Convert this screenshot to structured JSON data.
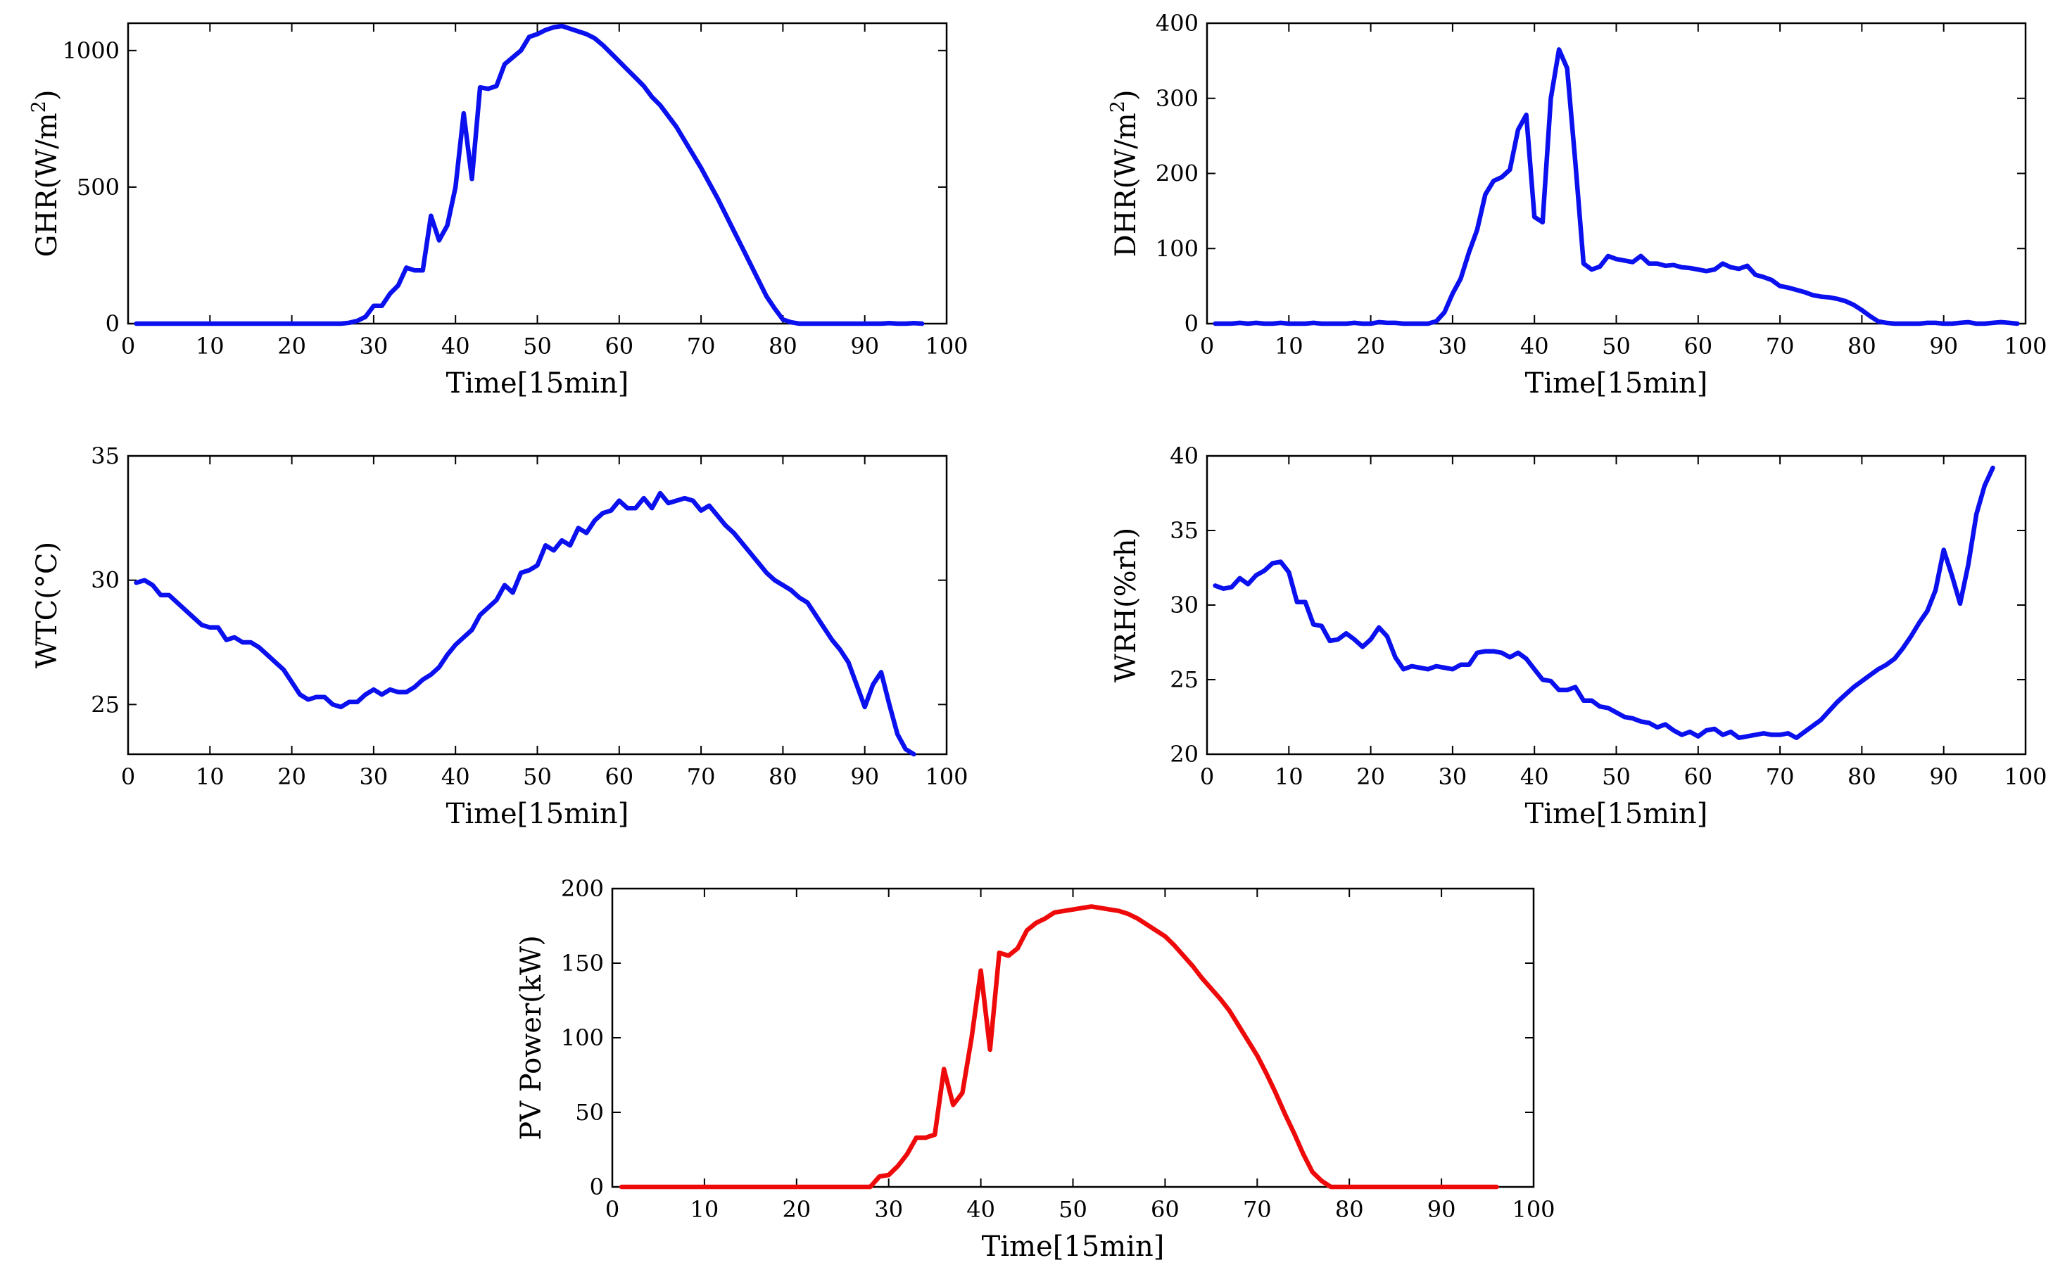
{
  "colors": {
    "blue_series": "#0a10ee",
    "red_series": "#ee0a0a"
  },
  "chart_data": [
    {
      "id": "ghr",
      "type": "line",
      "xlabel": "Time[15min]",
      "ylabel": "GHR(W/m",
      "ylabel_sup": "2",
      "ylabel_end": ")",
      "xlim": [
        0,
        100
      ],
      "ylim": [
        0,
        1100
      ],
      "xticks": [
        0,
        10,
        20,
        30,
        40,
        50,
        60,
        70,
        80,
        90,
        100
      ],
      "yticks": [
        0,
        500,
        1000
      ],
      "color": "#0a10ee",
      "series": [
        {
          "name": "GHR",
          "values": [
            0,
            0,
            0,
            0,
            0,
            0,
            0,
            0,
            0,
            0,
            0,
            0,
            0,
            0,
            0,
            0,
            0,
            0,
            0,
            0,
            0,
            0,
            0,
            0,
            0,
            0,
            3,
            10,
            25,
            65,
            65,
            110,
            140,
            205,
            195,
            195,
            395,
            305,
            360,
            500,
            770,
            530,
            865,
            860,
            870,
            950,
            975,
            1000,
            1050,
            1060,
            1075,
            1085,
            1090,
            1080,
            1070,
            1060,
            1045,
            1020,
            990,
            960,
            930,
            900,
            870,
            830,
            800,
            760,
            720,
            670,
            620,
            570,
            515,
            460,
            400,
            340,
            280,
            220,
            160,
            100,
            55,
            15,
            5,
            0,
            0,
            0,
            0,
            0,
            0,
            0,
            0,
            0,
            0,
            0,
            2,
            0,
            0,
            2,
            0
          ]
        }
      ]
    },
    {
      "id": "dhr",
      "type": "line",
      "xlabel": "Time[15min]",
      "ylabel": "DHR(W/m",
      "ylabel_sup": "2",
      "ylabel_end": ")",
      "xlim": [
        0,
        100
      ],
      "ylim": [
        0,
        400
      ],
      "xticks": [
        0,
        10,
        20,
        30,
        40,
        50,
        60,
        70,
        80,
        90,
        100
      ],
      "yticks": [
        0,
        100,
        200,
        300,
        400
      ],
      "color": "#0a10ee",
      "series": [
        {
          "name": "DHR",
          "values": [
            0,
            0,
            0,
            1,
            0,
            1,
            0,
            0,
            1,
            0,
            0,
            0,
            1,
            0,
            0,
            0,
            0,
            1,
            0,
            0,
            2,
            1,
            1,
            0,
            0,
            0,
            0,
            3,
            15,
            40,
            60,
            95,
            125,
            172,
            190,
            195,
            205,
            258,
            278,
            142,
            135,
            300,
            365,
            340,
            215,
            80,
            72,
            76,
            90,
            86,
            84,
            82,
            90,
            80,
            80,
            77,
            78,
            75,
            74,
            72,
            70,
            72,
            80,
            75,
            73,
            77,
            65,
            62,
            58,
            50,
            48,
            45,
            42,
            38,
            36,
            35,
            33,
            30,
            25,
            18,
            10,
            3,
            1,
            0,
            0,
            0,
            0,
            1,
            1,
            0,
            0,
            1,
            2,
            0,
            0,
            1,
            2,
            1,
            0
          ]
        }
      ]
    },
    {
      "id": "wtc",
      "type": "line",
      "xlabel": "Time[15min]",
      "ylabel": "WTC(°C)",
      "xlim": [
        0,
        100
      ],
      "ylim": [
        23,
        35
      ],
      "xticks": [
        0,
        10,
        20,
        30,
        40,
        50,
        60,
        70,
        80,
        90,
        100
      ],
      "yticks": [
        25,
        30,
        35
      ],
      "color": "#0a10ee",
      "series": [
        {
          "name": "WTC",
          "values": [
            29.9,
            30.0,
            29.8,
            29.4,
            29.4,
            29.1,
            28.8,
            28.5,
            28.2,
            28.1,
            28.1,
            27.6,
            27.7,
            27.5,
            27.5,
            27.3,
            27.0,
            26.7,
            26.4,
            25.9,
            25.4,
            25.2,
            25.3,
            25.3,
            25.0,
            24.9,
            25.1,
            25.1,
            25.4,
            25.6,
            25.4,
            25.6,
            25.5,
            25.5,
            25.7,
            26.0,
            26.2,
            26.5,
            27.0,
            27.4,
            27.7,
            28.0,
            28.6,
            28.9,
            29.2,
            29.8,
            29.5,
            30.3,
            30.4,
            30.6,
            31.4,
            31.2,
            31.6,
            31.4,
            32.1,
            31.9,
            32.4,
            32.7,
            32.8,
            33.2,
            32.9,
            32.9,
            33.3,
            32.9,
            33.5,
            33.1,
            33.2,
            33.3,
            33.2,
            32.8,
            33.0,
            32.6,
            32.2,
            31.9,
            31.5,
            31.1,
            30.7,
            30.3,
            30.0,
            29.8,
            29.6,
            29.3,
            29.1,
            28.6,
            28.1,
            27.6,
            27.2,
            26.7,
            25.8,
            24.9,
            25.8,
            26.3,
            25.0,
            23.8,
            23.2,
            23.0
          ]
        }
      ]
    },
    {
      "id": "wrh",
      "type": "line",
      "xlabel": "Time[15min]",
      "ylabel": "WRH(%rh)",
      "xlim": [
        0,
        100
      ],
      "ylim": [
        20,
        40
      ],
      "xticks": [
        0,
        10,
        20,
        30,
        40,
        50,
        60,
        70,
        80,
        90,
        100
      ],
      "yticks": [
        20,
        25,
        30,
        35,
        40
      ],
      "color": "#0a10ee",
      "series": [
        {
          "name": "WRH",
          "values": [
            31.3,
            31.1,
            31.2,
            31.8,
            31.4,
            32.0,
            32.3,
            32.8,
            32.9,
            32.2,
            30.2,
            30.2,
            28.7,
            28.6,
            27.6,
            27.7,
            28.1,
            27.7,
            27.2,
            27.7,
            28.5,
            27.9,
            26.5,
            25.7,
            25.9,
            25.8,
            25.7,
            25.9,
            25.8,
            25.7,
            26.0,
            26.0,
            26.8,
            26.9,
            26.9,
            26.8,
            26.5,
            26.8,
            26.4,
            25.7,
            25.0,
            24.9,
            24.3,
            24.3,
            24.5,
            23.6,
            23.6,
            23.2,
            23.1,
            22.8,
            22.5,
            22.4,
            22.2,
            22.1,
            21.8,
            22.0,
            21.6,
            21.3,
            21.5,
            21.2,
            21.6,
            21.7,
            21.3,
            21.5,
            21.1,
            21.2,
            21.3,
            21.4,
            21.3,
            21.3,
            21.4,
            21.1,
            21.5,
            21.9,
            22.3,
            22.9,
            23.5,
            24.0,
            24.5,
            24.9,
            25.3,
            25.7,
            26.0,
            26.4,
            27.1,
            27.9,
            28.8,
            29.6,
            31.0,
            33.7,
            32.0,
            30.1,
            32.7,
            36.1,
            38.0,
            39.2
          ]
        }
      ]
    },
    {
      "id": "pv",
      "type": "line",
      "xlabel": "Time[15min]",
      "ylabel": "PV Power(kW)",
      "xlim": [
        0,
        100
      ],
      "ylim": [
        0,
        200
      ],
      "xticks": [
        0,
        10,
        20,
        30,
        40,
        50,
        60,
        70,
        80,
        90,
        100
      ],
      "yticks": [
        0,
        50,
        100,
        150,
        200
      ],
      "color": "#ee0a0a",
      "series": [
        {
          "name": "PV Power",
          "values": [
            0,
            0,
            0,
            0,
            0,
            0,
            0,
            0,
            0,
            0,
            0,
            0,
            0,
            0,
            0,
            0,
            0,
            0,
            0,
            0,
            0,
            0,
            0,
            0,
            0,
            0,
            0,
            0,
            7,
            8,
            14,
            22,
            33,
            33,
            35,
            79,
            55,
            63,
            100,
            145,
            92,
            157,
            155,
            160,
            172,
            177,
            180,
            184,
            185,
            186,
            187,
            188,
            187,
            186,
            185,
            183,
            180,
            176,
            172,
            168,
            162,
            155,
            148,
            140,
            133,
            126,
            118,
            108,
            98,
            88,
            76,
            63,
            49,
            36,
            22,
            10,
            4,
            0,
            0,
            0,
            0,
            0,
            0,
            0,
            0,
            0,
            0,
            0,
            0,
            0,
            0,
            0,
            0,
            0,
            0,
            0
          ]
        }
      ]
    }
  ]
}
